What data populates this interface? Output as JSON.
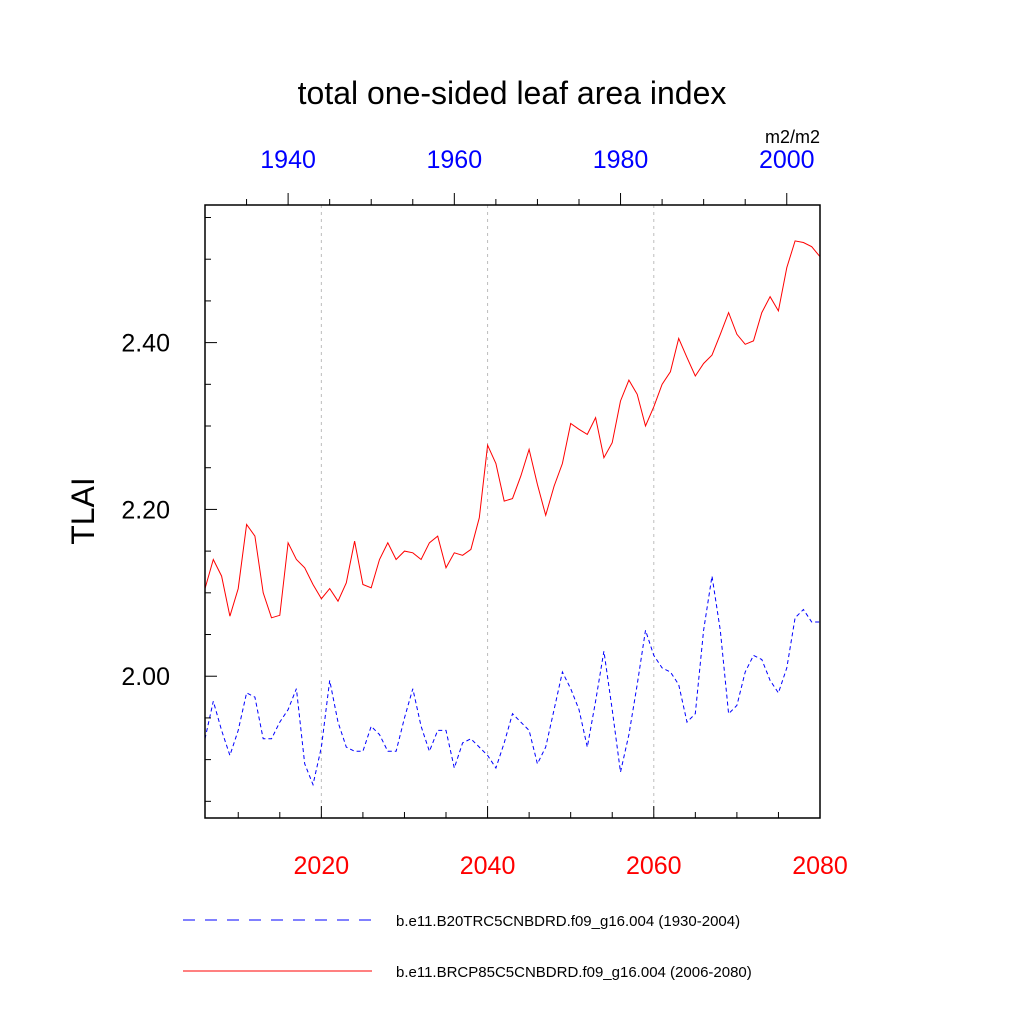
{
  "chart_data": {
    "type": "line",
    "title": "total one-sided leaf area index",
    "ylabel": "TLAI",
    "units_label": "m2/m2",
    "ylim": [
      1.83,
      2.565
    ],
    "yticks": [
      2.0,
      2.2,
      2.4
    ],
    "ytick_labels": [
      "2.00",
      "2.20",
      "2.40"
    ],
    "grid": "vertical dashed lines at bottom-axis major ticks",
    "legend_position": "bottom",
    "bottom_axis": {
      "color": "#ff0000",
      "range": [
        2006,
        2080
      ],
      "ticks": [
        2020,
        2040,
        2060,
        2080
      ],
      "tick_labels": [
        "2020",
        "2040",
        "2060",
        "2080"
      ]
    },
    "top_axis": {
      "color": "#0000ff",
      "range": [
        1930,
        2004
      ],
      "ticks": [
        1940,
        1960,
        1980,
        2000
      ],
      "tick_labels": [
        "1940",
        "1960",
        "1980",
        "2000"
      ]
    },
    "series": [
      {
        "name": "b.e11.B20TRC5CNBDRD.f09_g16.004 (1930-2004)",
        "color": "#0000ff",
        "style": "dashed",
        "axis": "top",
        "x": [
          1930,
          1931,
          1932,
          1933,
          1934,
          1935,
          1936,
          1937,
          1938,
          1939,
          1940,
          1941,
          1942,
          1943,
          1944,
          1945,
          1946,
          1947,
          1948,
          1949,
          1950,
          1951,
          1952,
          1953,
          1954,
          1955,
          1956,
          1957,
          1958,
          1959,
          1960,
          1961,
          1962,
          1963,
          1964,
          1965,
          1966,
          1967,
          1968,
          1969,
          1970,
          1971,
          1972,
          1973,
          1974,
          1975,
          1976,
          1977,
          1978,
          1979,
          1980,
          1981,
          1982,
          1983,
          1984,
          1985,
          1986,
          1987,
          1988,
          1989,
          1990,
          1991,
          1992,
          1993,
          1994,
          1995,
          1996,
          1997,
          1998,
          1999,
          2000,
          2001,
          2002,
          2003,
          2004
        ],
        "y": [
          1.925,
          1.97,
          1.935,
          1.905,
          1.935,
          1.98,
          1.975,
          1.925,
          1.925,
          1.945,
          1.96,
          1.985,
          1.895,
          1.87,
          1.915,
          1.995,
          1.945,
          1.915,
          1.91,
          1.91,
          1.94,
          1.93,
          1.91,
          1.91,
          1.95,
          1.985,
          1.94,
          1.91,
          1.935,
          1.935,
          1.89,
          1.92,
          1.925,
          1.915,
          1.905,
          1.89,
          1.92,
          1.955,
          1.945,
          1.935,
          1.895,
          1.915,
          1.96,
          2.005,
          1.985,
          1.96,
          1.915,
          1.97,
          2.03,
          1.96,
          1.885,
          1.93,
          1.99,
          2.055,
          2.025,
          2.01,
          2.005,
          1.99,
          1.945,
          1.955,
          2.055,
          2.12,
          2.055,
          1.955,
          1.965,
          2.005,
          2.025,
          2.02,
          1.995,
          1.98,
          2.01,
          2.07,
          2.08,
          2.065,
          2.065
        ]
      },
      {
        "name": "b.e11.BRCP85C5CNBDRD.f09_g16.004 (2006-2080)",
        "color": "#ff0000",
        "style": "solid",
        "axis": "bottom",
        "x": [
          2006,
          2007,
          2008,
          2009,
          2010,
          2011,
          2012,
          2013,
          2014,
          2015,
          2016,
          2017,
          2018,
          2019,
          2020,
          2021,
          2022,
          2023,
          2024,
          2025,
          2026,
          2027,
          2028,
          2029,
          2030,
          2031,
          2032,
          2033,
          2034,
          2035,
          2036,
          2037,
          2038,
          2039,
          2040,
          2041,
          2042,
          2043,
          2044,
          2045,
          2046,
          2047,
          2048,
          2049,
          2050,
          2051,
          2052,
          2053,
          2054,
          2055,
          2056,
          2057,
          2058,
          2059,
          2060,
          2061,
          2062,
          2063,
          2064,
          2065,
          2066,
          2067,
          2068,
          2069,
          2070,
          2071,
          2072,
          2073,
          2074,
          2075,
          2076,
          2077,
          2078,
          2079,
          2080
        ],
        "y": [
          2.105,
          2.14,
          2.12,
          2.072,
          2.105,
          2.182,
          2.168,
          2.1,
          2.07,
          2.073,
          2.16,
          2.14,
          2.13,
          2.11,
          2.093,
          2.105,
          2.09,
          2.112,
          2.162,
          2.11,
          2.106,
          2.14,
          2.16,
          2.14,
          2.15,
          2.148,
          2.14,
          2.16,
          2.168,
          2.13,
          2.148,
          2.145,
          2.152,
          2.19,
          2.277,
          2.255,
          2.21,
          2.213,
          2.24,
          2.272,
          2.23,
          2.193,
          2.228,
          2.255,
          2.303,
          2.296,
          2.29,
          2.31,
          2.262,
          2.28,
          2.33,
          2.355,
          2.338,
          2.3,
          2.323,
          2.35,
          2.365,
          2.405,
          2.382,
          2.36,
          2.375,
          2.385,
          2.41,
          2.436,
          2.41,
          2.398,
          2.402,
          2.436,
          2.455,
          2.438,
          2.49,
          2.522,
          2.52,
          2.515,
          2.503
        ]
      }
    ]
  }
}
